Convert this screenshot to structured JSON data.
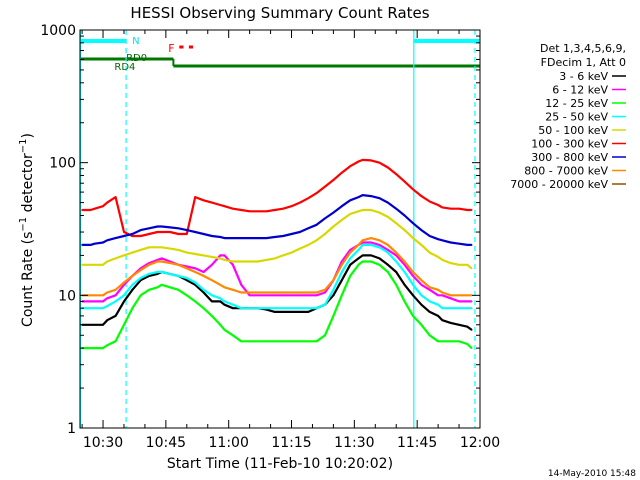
{
  "chart_data": {
    "type": "line",
    "title": "HESSI Observing Summary Count Rates",
    "xlabel": "Start Time (11-Feb-10 10:20:02)",
    "ylabel_main": "Count Rate (s",
    "ylabel_sup1": "−1",
    "ylabel_mid": " detector",
    "ylabel_sup2": "−1",
    "ylabel_end": ")",
    "x_unit": "minutes after 10:20",
    "xlim": [
      4.5,
      100
    ],
    "ylim": [
      1,
      1000
    ],
    "yscale": "log",
    "grid": false,
    "xticks": [
      {
        "value": 10,
        "label": "10:30"
      },
      {
        "value": 25,
        "label": "10:45"
      },
      {
        "value": 40,
        "label": "11:00"
      },
      {
        "value": 55,
        "label": "11:15"
      },
      {
        "value": 70,
        "label": "11:30"
      },
      {
        "value": 85,
        "label": "11:45"
      },
      {
        "value": 100,
        "label": "12:00"
      }
    ],
    "yticks": [
      {
        "value": 1,
        "label": "1"
      },
      {
        "value": 10,
        "label": "10"
      },
      {
        "value": 100,
        "label": "100"
      },
      {
        "value": 1000,
        "label": "1000"
      }
    ],
    "legend_header": [
      "Det 1,3,4,5,6,9,",
      "FDecim 1, Att 0"
    ],
    "legend_placement": "right",
    "series": [
      {
        "name": "3 - 6 keV",
        "color": "#000000",
        "x": [
          5,
          7,
          8,
          10,
          11,
          13,
          15,
          17,
          19,
          21,
          23,
          24,
          26,
          28,
          30,
          32,
          34,
          36,
          38,
          39,
          41,
          43,
          45,
          47,
          49,
          51,
          53,
          55,
          57,
          59,
          61,
          63,
          65,
          67,
          69,
          71,
          72,
          74,
          76,
          78,
          80,
          82,
          84,
          86,
          88,
          90,
          91,
          93,
          95,
          97,
          98
        ],
        "y": [
          6,
          6,
          6,
          6,
          6.5,
          7,
          9,
          11,
          13,
          14,
          14.5,
          15,
          14.5,
          14,
          13,
          12,
          10.5,
          9,
          9,
          8.5,
          8,
          8,
          8,
          8,
          7.8,
          7.5,
          7.5,
          7.5,
          7.5,
          7.5,
          8,
          8.5,
          10,
          13,
          17,
          19,
          20,
          20,
          19,
          17,
          15,
          12,
          10,
          8.5,
          7.5,
          7,
          6.5,
          6.2,
          6,
          5.8,
          5.5
        ]
      },
      {
        "name": "6 - 12 keV",
        "color": "#ff00ff",
        "x": [
          5,
          7,
          8,
          10,
          11,
          13,
          15,
          17,
          19,
          21,
          23,
          24,
          26,
          28,
          30,
          32,
          34,
          36,
          38,
          39,
          41,
          43,
          45,
          47,
          49,
          51,
          53,
          55,
          57,
          59,
          61,
          63,
          65,
          67,
          69,
          71,
          72,
          74,
          76,
          78,
          80,
          82,
          84,
          86,
          88,
          90,
          91,
          93,
          95,
          97,
          98
        ],
        "y": [
          9,
          9,
          9,
          9,
          9.5,
          10,
          12,
          14,
          16,
          17.5,
          18.5,
          19,
          18,
          17,
          16.5,
          16,
          15,
          17,
          20,
          20,
          17,
          12,
          10,
          10,
          10,
          10,
          10,
          10,
          10,
          10,
          10,
          10.5,
          13,
          18,
          22,
          24,
          25,
          25,
          24,
          22,
          20,
          17,
          14,
          12,
          11,
          10,
          10,
          9.5,
          9,
          9,
          9
        ]
      },
      {
        "name": "12 - 25 keV",
        "color": "#00ff00",
        "x": [
          5,
          7,
          8,
          10,
          11,
          13,
          15,
          17,
          19,
          21,
          23,
          24,
          26,
          28,
          30,
          32,
          34,
          36,
          38,
          39,
          41,
          43,
          45,
          47,
          49,
          51,
          53,
          55,
          57,
          59,
          61,
          63,
          65,
          67,
          69,
          71,
          72,
          74,
          76,
          78,
          80,
          82,
          84,
          86,
          88,
          90,
          91,
          93,
          95,
          97,
          98
        ],
        "y": [
          4,
          4,
          4,
          4,
          4.2,
          4.5,
          6,
          8,
          10,
          11,
          11.5,
          12,
          11.5,
          11,
          10,
          9,
          8,
          7,
          6,
          5.5,
          5,
          4.5,
          4.5,
          4.5,
          4.5,
          4.5,
          4.5,
          4.5,
          4.5,
          4.5,
          4.5,
          5,
          7,
          10,
          14,
          17,
          18,
          18,
          17,
          15,
          12,
          9,
          7,
          6,
          5,
          4.5,
          4.5,
          4.5,
          4.5,
          4.3,
          4
        ]
      },
      {
        "name": "25 - 50 keV",
        "color": "#00ffff",
        "x": [
          5,
          7,
          8,
          10,
          11,
          13,
          15,
          17,
          19,
          21,
          23,
          24,
          26,
          28,
          30,
          32,
          34,
          36,
          38,
          39,
          41,
          43,
          45,
          47,
          49,
          51,
          53,
          55,
          57,
          59,
          61,
          63,
          65,
          67,
          69,
          71,
          72,
          74,
          76,
          78,
          80,
          82,
          84,
          86,
          88,
          90,
          91,
          93,
          95,
          97,
          98
        ],
        "y": [
          8,
          8,
          8,
          8,
          8.3,
          9,
          10,
          12,
          13.5,
          14.5,
          15,
          15,
          14.5,
          14,
          13.5,
          12.5,
          11,
          10,
          9.5,
          9,
          8.5,
          8,
          8,
          8,
          8,
          8,
          8,
          8,
          8,
          8,
          8,
          8.5,
          11,
          15,
          19,
          22,
          24,
          24,
          23,
          21,
          18,
          15,
          12,
          10,
          9,
          8.5,
          8,
          8,
          8,
          8,
          8
        ]
      },
      {
        "name": "50 - 100 keV",
        "color": "#d8d800",
        "x": [
          5,
          7,
          8,
          10,
          11,
          13,
          15,
          17,
          19,
          21,
          23,
          24,
          26,
          28,
          30,
          32,
          34,
          36,
          38,
          39,
          41,
          43,
          45,
          47,
          49,
          51,
          53,
          55,
          57,
          59,
          61,
          63,
          65,
          67,
          69,
          71,
          72,
          74,
          76,
          78,
          80,
          82,
          84,
          86,
          88,
          90,
          91,
          93,
          95,
          97,
          98
        ],
        "y": [
          17,
          17,
          17,
          17,
          18,
          19,
          20,
          21,
          22,
          23,
          23,
          23,
          22.5,
          22,
          21,
          20.5,
          20,
          19.5,
          19,
          18.5,
          18,
          18,
          18,
          18,
          18.5,
          19,
          20,
          21,
          22.5,
          24,
          26,
          29,
          33,
          37,
          41,
          43,
          44,
          44,
          42,
          39,
          35,
          31,
          27,
          24,
          21,
          19.5,
          18.5,
          17.5,
          17,
          17,
          16
        ]
      },
      {
        "name": "100 - 300 keV",
        "color": "#ff0000",
        "x": [
          5,
          7,
          8,
          10,
          11,
          13,
          15,
          17,
          19,
          21,
          23,
          24,
          26,
          28,
          30,
          32,
          34,
          36,
          38,
          39,
          41,
          43,
          45,
          47,
          49,
          51,
          53,
          55,
          57,
          59,
          61,
          63,
          65,
          67,
          69,
          71,
          72,
          74,
          76,
          78,
          80,
          82,
          84,
          86,
          88,
          90,
          91,
          93,
          95,
          97,
          98
        ],
        "y": [
          44,
          44,
          45,
          47,
          50,
          55,
          30,
          28,
          28,
          29,
          30,
          30,
          30,
          29,
          29,
          55,
          52,
          50,
          48,
          47,
          45,
          44,
          43,
          43,
          43,
          44,
          45,
          47,
          50,
          54,
          59,
          66,
          74,
          84,
          94,
          102,
          105,
          104,
          100,
          92,
          82,
          72,
          63,
          56,
          51,
          48,
          46,
          45,
          45,
          44,
          44
        ]
      },
      {
        "name": "300 - 800 keV",
        "color": "#0000cc",
        "x": [
          5,
          7,
          8,
          10,
          11,
          13,
          15,
          17,
          19,
          21,
          23,
          24,
          26,
          28,
          30,
          32,
          34,
          36,
          38,
          39,
          41,
          43,
          45,
          47,
          49,
          51,
          53,
          55,
          57,
          59,
          61,
          63,
          65,
          67,
          69,
          71,
          72,
          74,
          76,
          78,
          80,
          82,
          84,
          86,
          88,
          90,
          91,
          93,
          95,
          97,
          98
        ],
        "y": [
          24,
          24,
          24.5,
          25,
          26,
          27,
          28,
          29,
          31,
          32,
          33,
          33,
          32.5,
          32,
          31,
          30,
          29,
          28,
          27.5,
          27,
          27,
          27,
          27,
          27,
          27,
          27.5,
          28,
          29,
          30,
          32,
          34,
          38,
          42,
          47,
          52,
          55,
          57,
          56,
          54,
          50,
          45,
          40,
          35,
          31,
          28,
          26.5,
          26,
          25,
          24.5,
          24,
          24
        ]
      },
      {
        "name": "800 - 7000 keV",
        "color": "#ff8800",
        "x": [
          5,
          7,
          8,
          10,
          11,
          13,
          15,
          17,
          19,
          21,
          23,
          24,
          26,
          28,
          30,
          32,
          34,
          36,
          38,
          39,
          41,
          43,
          45,
          47,
          49,
          51,
          53,
          55,
          57,
          59,
          61,
          63,
          65,
          67,
          69,
          71,
          72,
          74,
          76,
          78,
          80,
          82,
          84,
          86,
          88,
          90,
          91,
          93,
          95,
          97,
          98
        ],
        "y": [
          10,
          10,
          10,
          10,
          10.5,
          11,
          12.5,
          14,
          15.5,
          17,
          18,
          18,
          17.5,
          17,
          16,
          15,
          14,
          13,
          12,
          11.5,
          11,
          10.5,
          10.5,
          10.5,
          10.5,
          10.5,
          10.5,
          10.5,
          10.5,
          10.5,
          10.5,
          11,
          13,
          17,
          21,
          24,
          26,
          27,
          26,
          24,
          21,
          18,
          15,
          13,
          11.5,
          11,
          10.5,
          10,
          10,
          10,
          10
        ]
      },
      {
        "name": "7000 - 20000 keV",
        "color": "#885500",
        "x": [],
        "y": []
      }
    ],
    "annotations": [
      {
        "text": "N",
        "color": "#00e5e5"
      },
      {
        "text": "RD0",
        "color": "#006600"
      },
      {
        "text": "RD4",
        "color": "#006600"
      },
      {
        "text": "F",
        "color": "#ff0000"
      }
    ],
    "flag_bars": {
      "night": [
        [
          4.5,
          15.5
        ],
        [
          84.2,
          100
        ]
      ],
      "saa_rd": [
        [
          4.5,
          26.8
        ],
        [
          26.8,
          100
        ]
      ],
      "flare": [
        [
          28.2,
          29.2
        ],
        [
          30.5,
          31.5
        ]
      ]
    },
    "vlines_solid": [
      4.6,
      84.2
    ],
    "vlines_dashed": [
      15.5,
      98.8
    ]
  },
  "footer": {
    "timestamp": "14-May-2010 15:48"
  }
}
